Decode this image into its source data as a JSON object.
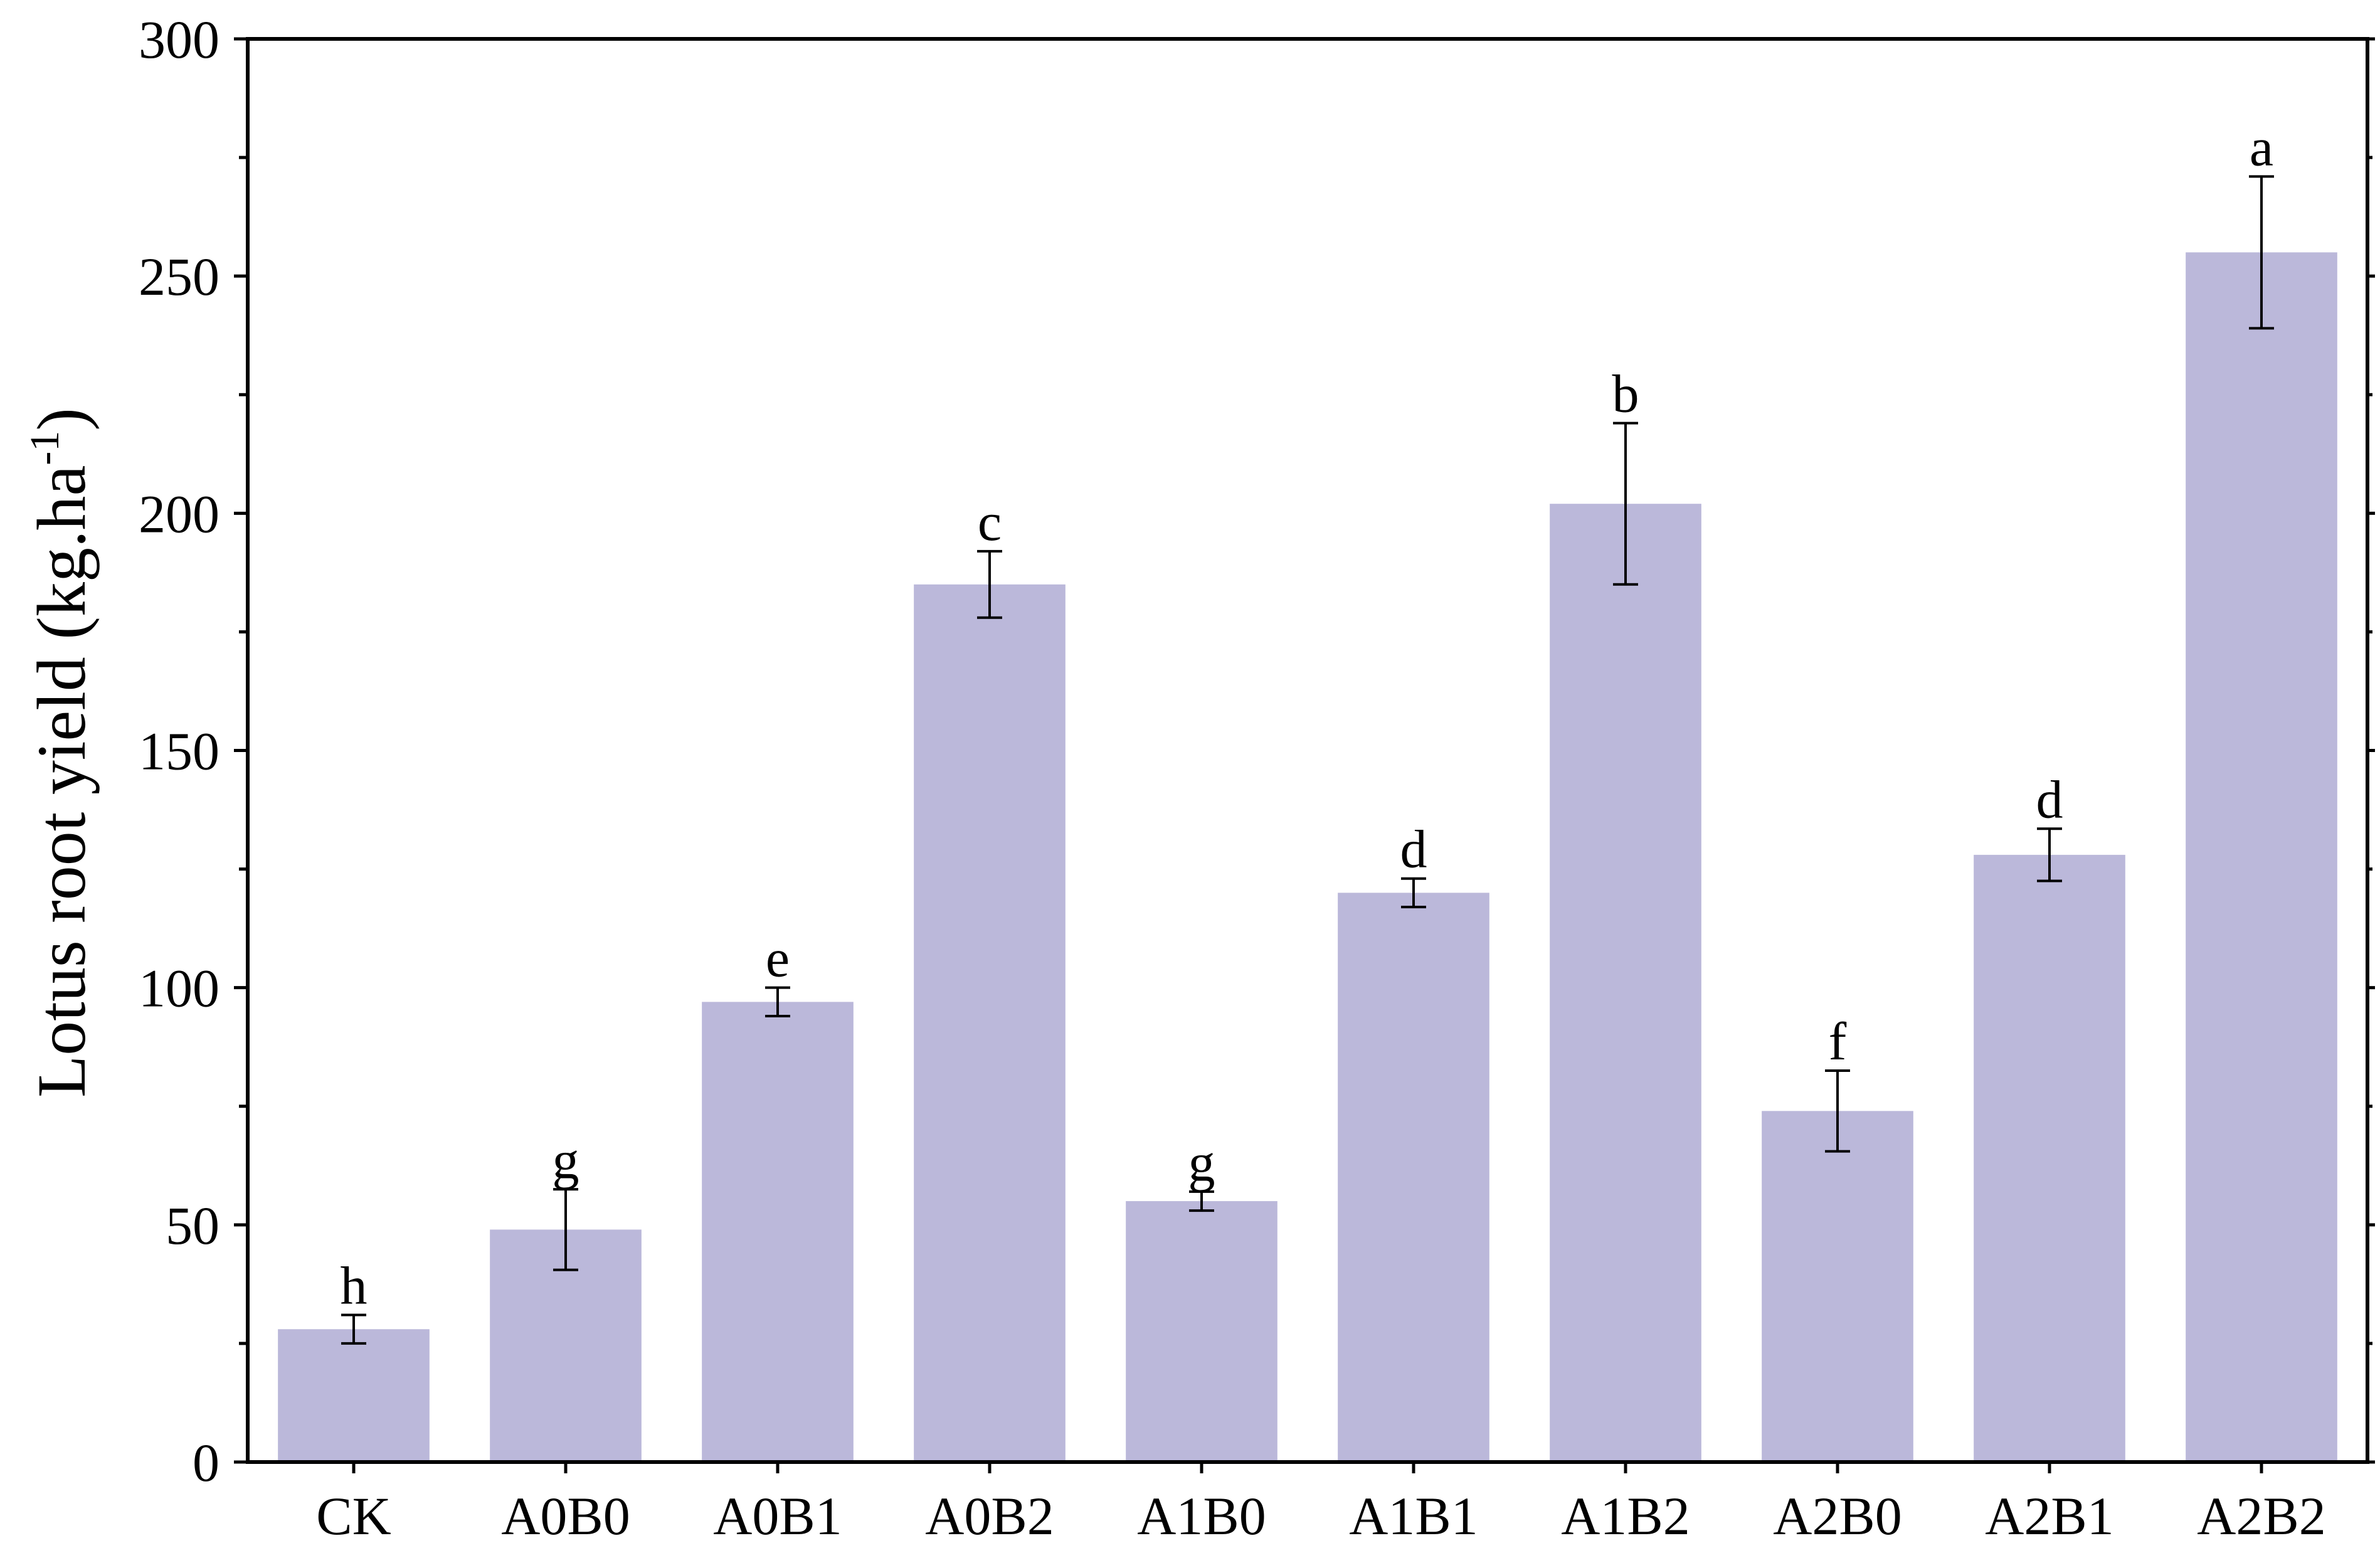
{
  "chart_data": {
    "type": "bar",
    "title": "",
    "xlabel": "",
    "ylabel": "Lotus root yield (kg.ha",
    "ylabel_superscript": "-1",
    "ylabel_suffix": ")",
    "ylim": [
      0,
      300
    ],
    "yticks": [
      0,
      50,
      100,
      150,
      200,
      250,
      300
    ],
    "yticks_minor": [
      25,
      75,
      125,
      175,
      225,
      275
    ],
    "grid": false,
    "legend": "none",
    "categories": [
      "CK",
      "A0B0",
      "A0B1",
      "A0B2",
      "A1B0",
      "A1B1",
      "A1B2",
      "A2B0",
      "A2B1",
      "A2B2"
    ],
    "values": [
      28,
      49,
      97,
      185,
      55,
      120,
      202,
      74,
      128,
      255
    ],
    "errors": [
      3,
      8.5,
      3,
      7,
      2,
      3,
      17,
      8.5,
      5.5,
      16
    ],
    "significance_letters": [
      "h",
      "g",
      "e",
      "c",
      "g",
      "d",
      "b",
      "f",
      "d",
      "a"
    ],
    "colors": {
      "bar": "#bbb8da",
      "axis": "#000000",
      "error_bar": "#000000"
    }
  }
}
